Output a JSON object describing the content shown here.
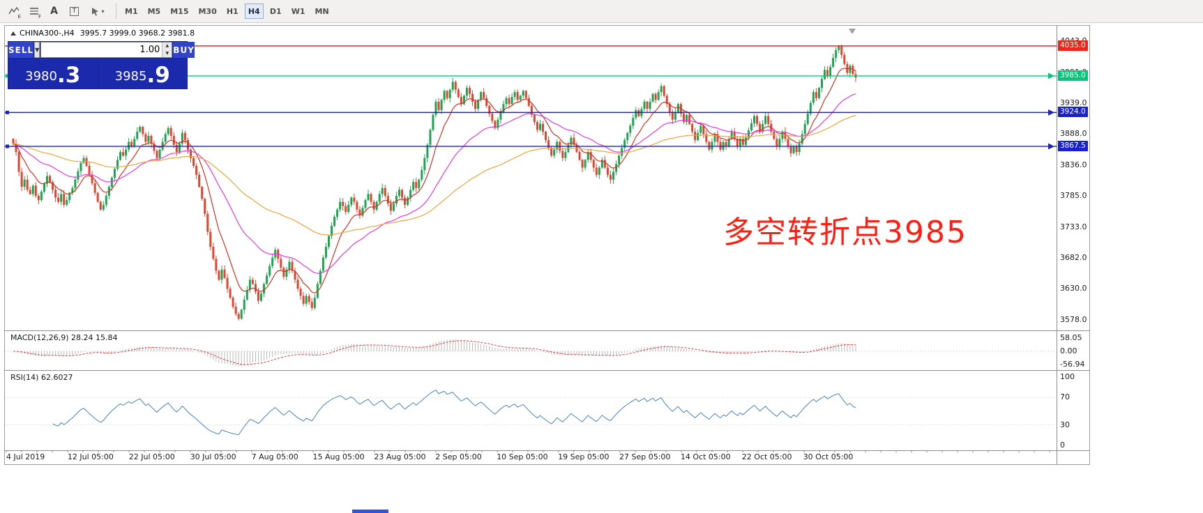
{
  "toolbar": {
    "icon_e": "E",
    "icon_f": "F",
    "icon_a": "A",
    "icon_t": "T",
    "timeframes": [
      "M1",
      "M5",
      "M15",
      "M30",
      "H1",
      "H4",
      "D1",
      "W1",
      "MN"
    ],
    "active_timeframe": "H4"
  },
  "chart_header": {
    "symbol": "CHINA300-,H4",
    "ohlc_text": "3995.7 3999.0 3968.2 3981.8"
  },
  "trade_panel": {
    "sell_label": "SELL",
    "buy_label": "BUY",
    "volume": "1.00",
    "sell_price_main": "3980",
    "sell_price_pips": ".3",
    "buy_price_main": "3985",
    "buy_price_pips": ".9"
  },
  "annotation": {
    "text": "多空转折点3985",
    "color": "#ff1e12"
  },
  "macd_panel": {
    "label": "MACD(12,26,9)",
    "values": "28.24 15.84"
  },
  "rsi_panel": {
    "label": "RSI(14)",
    "value": "62.6027"
  },
  "chart_data": {
    "type": "candlestick",
    "symbol": "CHINA300-",
    "timeframe": "H4",
    "ohlc_current": {
      "open": 3995.7,
      "high": 3999.0,
      "low": 3968.2,
      "close": 3981.8
    },
    "price_range": [
      3578.0,
      4043.0
    ],
    "price_ticks": [
      4043.0,
      3991.0,
      3939.0,
      3888.0,
      3836.0,
      3785.0,
      3733.0,
      3682.0,
      3630.0,
      3578.0
    ],
    "time_labels": [
      "4 Jul 2019",
      "12 Jul 05:00",
      "22 Jul 05:00",
      "30 Jul 05:00",
      "7 Aug 05:00",
      "15 Aug 05:00",
      "23 Aug 05:00",
      "2 Sep 05:00",
      "10 Sep 05:00",
      "19 Sep 05:00",
      "27 Sep 05:00",
      "14 Oct 05:00",
      "22 Oct 05:00",
      "30 Oct 05:00"
    ],
    "closes": [
      3872,
      3858,
      3825,
      3800,
      3812,
      3795,
      3788,
      3802,
      3785,
      3778,
      3792,
      3805,
      3818,
      3808,
      3795,
      3782,
      3775,
      3788,
      3770,
      3778,
      3790,
      3798,
      3812,
      3826,
      3840,
      3848,
      3835,
      3820,
      3806,
      3790,
      3775,
      3762,
      3770,
      3785,
      3800,
      3815,
      3830,
      3845,
      3858,
      3852,
      3862,
      3875,
      3868,
      3880,
      3892,
      3900,
      3888,
      3875,
      3885,
      3872,
      3860,
      3848,
      3862,
      3875,
      3888,
      3898,
      3885,
      3870,
      3858,
      3872,
      3890,
      3878,
      3862,
      3848,
      3835,
      3820,
      3800,
      3780,
      3755,
      3725,
      3700,
      3680,
      3660,
      3645,
      3662,
      3648,
      3630,
      3615,
      3600,
      3588,
      3580,
      3595,
      3612,
      3628,
      3645,
      3638,
      3625,
      3610,
      3622,
      3638,
      3652,
      3668,
      3682,
      3695,
      3680,
      3665,
      3650,
      3662,
      3675,
      3660,
      3645,
      3630,
      3618,
      3605,
      3618,
      3608,
      3598,
      3615,
      3638,
      3660,
      3682,
      3700,
      3718,
      3735,
      3750,
      3762,
      3775,
      3768,
      3758,
      3770,
      3782,
      3775,
      3762,
      3752,
      3765,
      3778,
      3788,
      3775,
      3762,
      3775,
      3788,
      3798,
      3785,
      3772,
      3760,
      3772,
      3785,
      3795,
      3782,
      3770,
      3782,
      3795,
      3808,
      3798,
      3812,
      3828,
      3848,
      3870,
      3895,
      3920,
      3942,
      3928,
      3945,
      3960,
      3948,
      3962,
      3975,
      3962,
      3950,
      3938,
      3952,
      3965,
      3955,
      3942,
      3930,
      3945,
      3958,
      3948,
      3935,
      3922,
      3910,
      3898,
      3912,
      3925,
      3938,
      3948,
      3938,
      3950,
      3958,
      3945,
      3952,
      3960,
      3948,
      3935,
      3920,
      3908,
      3895,
      3905,
      3892,
      3878,
      3865,
      3852,
      3862,
      3875,
      3860,
      3848,
      3858,
      3870,
      3882,
      3870,
      3858,
      3845,
      3832,
      3845,
      3858,
      3845,
      3832,
      3820,
      3832,
      3845,
      3832,
      3820,
      3812,
      3825,
      3838,
      3852,
      3865,
      3878,
      3890,
      3902,
      3915,
      3928,
      3918,
      3930,
      3942,
      3930,
      3942,
      3955,
      3945,
      3958,
      3968,
      3952,
      3938,
      3925,
      3912,
      3925,
      3938,
      3922,
      3908,
      3920,
      3905,
      3892,
      3878,
      3890,
      3902,
      3888,
      3875,
      3862,
      3875,
      3888,
      3875,
      3862,
      3875,
      3868,
      3880,
      3892,
      3880,
      3868,
      3880,
      3870,
      3882,
      3894,
      3906,
      3918,
      3905,
      3892,
      3905,
      3918,
      3905,
      3892,
      3880,
      3868,
      3880,
      3892,
      3880,
      3868,
      3856,
      3868,
      3858,
      3872,
      3888,
      3905,
      3922,
      3940,
      3958,
      3948,
      3965,
      3980,
      3995,
      3985,
      4000,
      4015,
      4028,
      4035,
      4020,
      4005,
      3990,
      4002,
      3988,
      3982
    ],
    "hlines": [
      {
        "value": 4035.0,
        "label": "4035.0",
        "color": "#e8281b",
        "left_square": false,
        "right_arrow": false
      },
      {
        "value": 3985.0,
        "label": "3985.0",
        "color": "#00c878",
        "left_square": true,
        "right_arrow": true
      },
      {
        "value": 3924.0,
        "label": "3924.0",
        "color": "#1822c8",
        "left_square": true,
        "right_arrow": true
      },
      {
        "value": 3867.5,
        "label": "3867.5",
        "color": "#1822c8",
        "left_square": true,
        "right_arrow": true
      }
    ],
    "overlays": [
      {
        "name": "ma-fast",
        "period": 10,
        "color": "#cf3322"
      },
      {
        "name": "ma-mid",
        "period": 34,
        "color": "#e23ae2"
      },
      {
        "name": "ma-slow",
        "period": 89,
        "color": "#eda43c"
      }
    ],
    "macd": {
      "fast": 12,
      "slow": 26,
      "signal": 9,
      "main": 28.24,
      "signal_value": 15.84,
      "scale": [
        58.05,
        0,
        -56.94
      ]
    },
    "rsi": {
      "period": 14,
      "value": 62.6027,
      "scale": [
        100,
        70,
        30,
        0
      ],
      "levels": [
        70,
        30
      ]
    },
    "colors": {
      "bull": "#1fa352",
      "bear": "#df4630",
      "ma_fast": "#cf3322",
      "ma_mid": "#e23ae2",
      "ma_slow": "#eda43c",
      "macd_hist": "#b9b9b9",
      "macd_signal": "#e03a3a",
      "rsi": "#4a80c0"
    }
  }
}
